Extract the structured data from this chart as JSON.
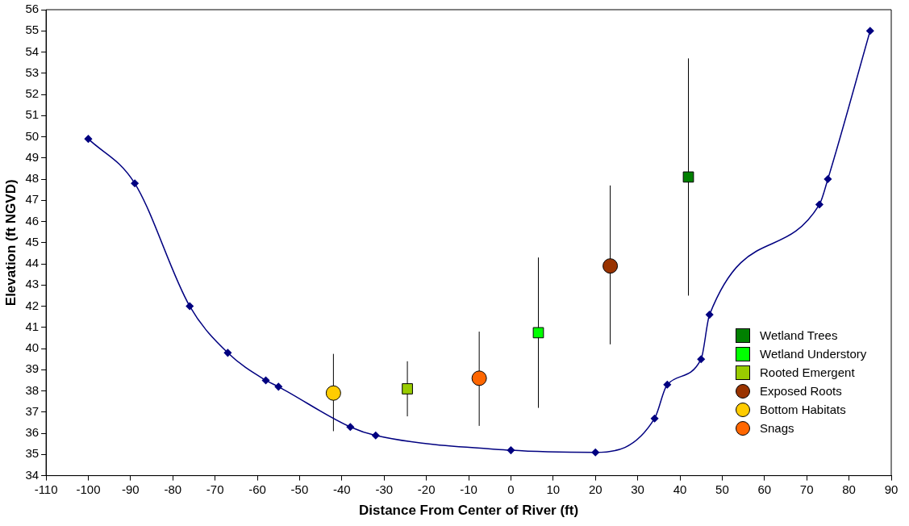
{
  "chart_data": {
    "type": "scatter",
    "xlabel": "Distance From Center of River (ft)",
    "ylabel": "Elevation (ft NGVD)",
    "xlim": [
      -110,
      90
    ],
    "xticks": [
      -110,
      -100,
      -90,
      -80,
      -70,
      -60,
      -50,
      -40,
      -30,
      -20,
      -10,
      0,
      10,
      20,
      30,
      40,
      50,
      60,
      70,
      80,
      90
    ],
    "ylim": [
      34,
      56
    ],
    "yticks": [
      34,
      35,
      36,
      37,
      38,
      39,
      40,
      41,
      42,
      43,
      44,
      45,
      46,
      47,
      48,
      49,
      50,
      51,
      52,
      53,
      54,
      55,
      56
    ],
    "grid": false,
    "legend": "bottom right",
    "series": [
      {
        "type": "line",
        "marker": "diamond",
        "color": "#000080",
        "x": [
          -100,
          -89,
          -76,
          -67,
          -58,
          -55,
          -38,
          -32,
          0,
          20,
          34,
          37,
          45,
          47,
          73,
          75,
          85
        ],
        "values": [
          49.9,
          47.8,
          42.0,
          39.8,
          38.5,
          38.2,
          36.3,
          35.9,
          35.2,
          35.1,
          36.7,
          38.3,
          39.5,
          41.6,
          46.8,
          48.0,
          55.0
        ]
      },
      {
        "name": "Wetland Trees",
        "marker": "square",
        "color": "#008000",
        "x": [
          42
        ],
        "values": [
          48.1
        ],
        "errors": [
          [
            42.5,
            53.7
          ]
        ]
      },
      {
        "name": "Wetland Understory",
        "marker": "square",
        "color": "#00ff00",
        "x": [
          6.5
        ],
        "values": [
          40.75
        ],
        "errors": [
          [
            37.2,
            44.3
          ]
        ]
      },
      {
        "name": "Rooted Emergent",
        "marker": "square",
        "color": "#99cc00",
        "x": [
          -24.5
        ],
        "values": [
          38.1
        ],
        "errors": [
          [
            36.8,
            39.4
          ]
        ]
      },
      {
        "name": "Exposed Roots",
        "marker": "circle",
        "color": "#993300",
        "x": [
          23.5
        ],
        "values": [
          43.9
        ],
        "errors": [
          [
            40.2,
            47.7
          ]
        ]
      },
      {
        "name": "Bottom Habitats",
        "marker": "circle",
        "color": "#ffcc00",
        "x": [
          -42
        ],
        "values": [
          37.9
        ],
        "errors": [
          [
            36.1,
            39.75
          ]
        ]
      },
      {
        "name": "Snags",
        "marker": "circle",
        "color": "#ff6600",
        "x": [
          -7.5
        ],
        "values": [
          38.6
        ],
        "errors": [
          [
            36.35,
            40.8
          ]
        ]
      }
    ]
  }
}
